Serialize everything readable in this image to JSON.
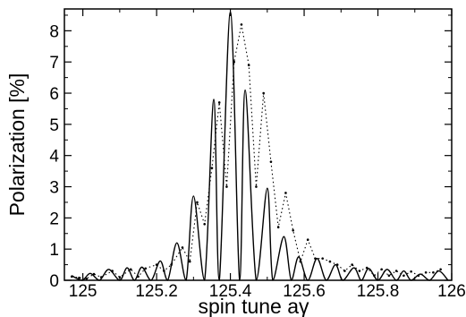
{
  "chart_data": {
    "type": "line",
    "title": "",
    "xlabel": "spin tune aγ",
    "ylabel": "Polarization [%]",
    "xlim": [
      124.95,
      126.0
    ],
    "ylim": [
      0,
      8.7
    ],
    "grid": false,
    "legend": "none",
    "x_ticks": [
      125,
      125.2,
      125.4,
      125.6,
      125.8,
      126
    ],
    "x_tick_labels": [
      "125",
      "125.2",
      "125.4",
      "125.6",
      "125.8",
      "126"
    ],
    "y_ticks": [
      0,
      1,
      2,
      3,
      4,
      5,
      6,
      7,
      8
    ],
    "y_tick_labels": [
      "0",
      "1",
      "2",
      "3",
      "4",
      "5",
      "6",
      "7",
      "8"
    ],
    "line_color": "#000000",
    "series": [
      {
        "style": "solid",
        "description": "fitted interference pattern (curve through extrema)",
        "x": [
          124.97,
          124.985,
          125.0,
          125.02,
          125.045,
          125.07,
          125.1,
          125.12,
          125.14,
          125.16,
          125.185,
          125.21,
          125.23,
          125.255,
          125.28,
          125.3,
          125.33,
          125.355,
          125.37,
          125.4,
          125.425,
          125.44,
          125.47,
          125.5,
          125.515,
          125.545,
          125.565,
          125.585,
          125.61,
          125.635,
          125.66,
          125.685,
          125.705,
          125.735,
          125.755,
          125.775,
          125.8,
          125.825,
          125.85,
          125.87,
          125.89,
          125.915,
          125.94,
          125.965,
          125.99
        ],
        "y": [
          0.15,
          0.05,
          0.0,
          0.22,
          0.0,
          0.35,
          0.0,
          0.4,
          0.0,
          0.42,
          0.0,
          0.62,
          0.0,
          1.2,
          0.0,
          2.7,
          0.0,
          5.8,
          0.0,
          8.6,
          0.0,
          6.1,
          0.0,
          2.95,
          0.0,
          1.4,
          0.0,
          0.75,
          0.0,
          0.7,
          0.0,
          0.5,
          0.0,
          0.4,
          0.0,
          0.38,
          0.0,
          0.35,
          0.0,
          0.3,
          0.0,
          0.2,
          0.0,
          0.3,
          0.0
        ]
      },
      {
        "style": "dotted",
        "description": "measured points",
        "x": [
          124.97,
          124.99,
          125.01,
          125.03,
          125.05,
          125.08,
          125.1,
          125.13,
          125.15,
          125.17,
          125.2,
          125.22,
          125.24,
          125.27,
          125.29,
          125.31,
          125.33,
          125.35,
          125.37,
          125.39,
          125.41,
          125.43,
          125.45,
          125.47,
          125.49,
          125.51,
          125.53,
          125.55,
          125.57,
          125.59,
          125.61,
          125.63,
          125.65,
          125.67,
          125.69,
          125.71,
          125.73,
          125.75,
          125.77,
          125.79,
          125.81,
          125.83,
          125.85,
          125.87,
          125.89,
          125.91,
          125.93,
          125.95,
          125.97
        ],
        "y": [
          0.12,
          0.08,
          0.05,
          0.2,
          0.1,
          0.3,
          0.1,
          0.35,
          0.12,
          0.38,
          0.5,
          0.3,
          0.5,
          1.05,
          0.6,
          2.5,
          1.8,
          3.6,
          5.7,
          3.0,
          7.0,
          8.2,
          6.9,
          3.0,
          6.0,
          3.8,
          1.7,
          2.8,
          1.6,
          0.6,
          1.3,
          0.7,
          0.7,
          0.6,
          0.5,
          0.3,
          0.5,
          0.3,
          0.4,
          0.15,
          0.35,
          0.15,
          0.3,
          0.15,
          0.28,
          0.15,
          0.25,
          0.25,
          0.35
        ]
      }
    ]
  }
}
